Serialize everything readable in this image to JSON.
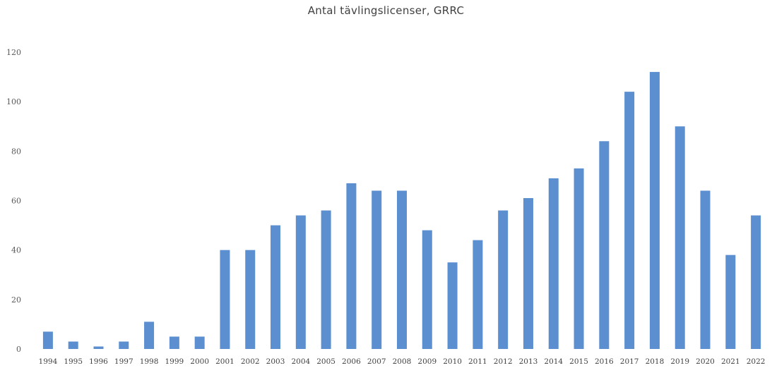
{
  "chart_data": {
    "type": "bar",
    "title": "Antal tävlingslicenser, GRRC",
    "xlabel": "",
    "ylabel": "",
    "categories": [
      "1994",
      "1995",
      "1996",
      "1997",
      "1998",
      "1999",
      "2000",
      "2001",
      "2002",
      "2003",
      "2004",
      "2005",
      "2006",
      "2007",
      "2008",
      "2009",
      "2010",
      "2011",
      "2012",
      "2013",
      "2014",
      "2015",
      "2016",
      "2017",
      "2018",
      "2019",
      "2020",
      "2021",
      "2022"
    ],
    "values": [
      7,
      3,
      1,
      3,
      11,
      5,
      5,
      40,
      40,
      50,
      54,
      56,
      67,
      64,
      64,
      48,
      35,
      44,
      56,
      61,
      69,
      73,
      84,
      104,
      112,
      90,
      64,
      38,
      54
    ],
    "ylim": [
      0,
      120
    ],
    "yticks": [
      "0",
      "20",
      "40",
      "60",
      "80",
      "100",
      "120"
    ],
    "grid": false,
    "legend": "none",
    "bar_color": "#5b8fd0"
  }
}
